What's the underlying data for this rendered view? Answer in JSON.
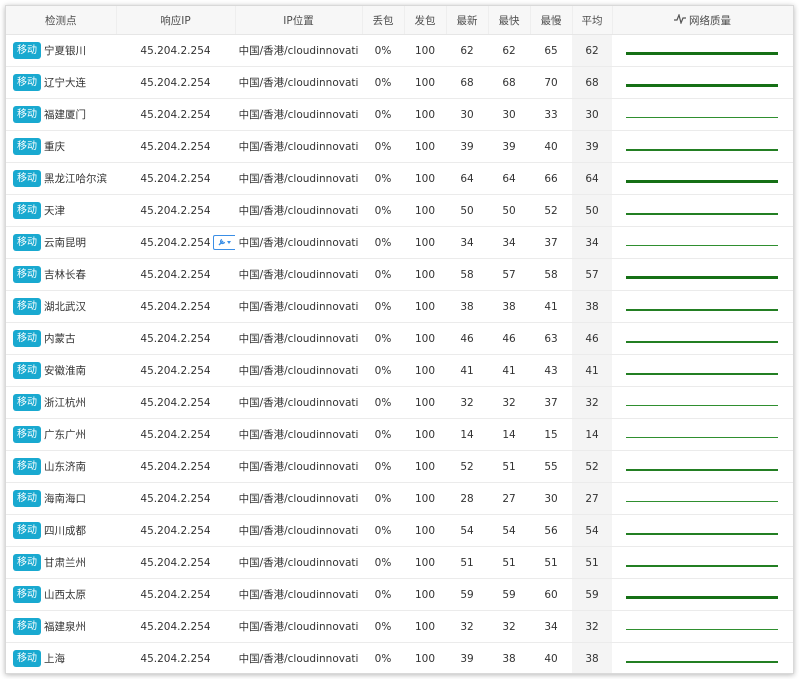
{
  "headers": [
    "检测点",
    "响应IP",
    "IP位置",
    "丢包",
    "发包",
    "最新",
    "最快",
    "最慢",
    "平均",
    "网络质量"
  ],
  "rows": [
    {
      "isp": "移动",
      "city": "宁夏银川",
      "ip": "45.204.2.254",
      "loc": "中国/香港/cloudinnovati",
      "loss": "0%",
      "sent": "100",
      "latest": "62",
      "fast": "62",
      "slow": "65",
      "avg": "62"
    },
    {
      "isp": "移动",
      "city": "辽宁大连",
      "ip": "45.204.2.254",
      "loc": "中国/香港/cloudinnovati",
      "loss": "0%",
      "sent": "100",
      "latest": "68",
      "fast": "68",
      "slow": "70",
      "avg": "68"
    },
    {
      "isp": "移动",
      "city": "福建厦门",
      "ip": "45.204.2.254",
      "loc": "中国/香港/cloudinnovati",
      "loss": "0%",
      "sent": "100",
      "latest": "30",
      "fast": "30",
      "slow": "33",
      "avg": "30"
    },
    {
      "isp": "移动",
      "city": "重庆",
      "ip": "45.204.2.254",
      "loc": "中国/香港/cloudinnovati",
      "loss": "0%",
      "sent": "100",
      "latest": "39",
      "fast": "39",
      "slow": "40",
      "avg": "39"
    },
    {
      "isp": "移动",
      "city": "黑龙江哈尔滨",
      "ip": "45.204.2.254",
      "loc": "中国/香港/cloudinnovati",
      "loss": "0%",
      "sent": "100",
      "latest": "64",
      "fast": "64",
      "slow": "66",
      "avg": "64"
    },
    {
      "isp": "移动",
      "city": "天津",
      "ip": "45.204.2.254",
      "loc": "中国/香港/cloudinnovati",
      "loss": "0%",
      "sent": "100",
      "latest": "50",
      "fast": "50",
      "slow": "52",
      "avg": "50"
    },
    {
      "isp": "移动",
      "city": "云南昆明",
      "ip": "45.204.2.254",
      "loc": "中国/香港/cloudinnovati",
      "loss": "0%",
      "sent": "100",
      "latest": "34",
      "fast": "34",
      "slow": "37",
      "avg": "34",
      "tool": true
    },
    {
      "isp": "移动",
      "city": "吉林长春",
      "ip": "45.204.2.254",
      "loc": "中国/香港/cloudinnovati",
      "loss": "0%",
      "sent": "100",
      "latest": "58",
      "fast": "57",
      "slow": "58",
      "avg": "57"
    },
    {
      "isp": "移动",
      "city": "湖北武汉",
      "ip": "45.204.2.254",
      "loc": "中国/香港/cloudinnovati",
      "loss": "0%",
      "sent": "100",
      "latest": "38",
      "fast": "38",
      "slow": "41",
      "avg": "38"
    },
    {
      "isp": "移动",
      "city": "内蒙古",
      "ip": "45.204.2.254",
      "loc": "中国/香港/cloudinnovati",
      "loss": "0%",
      "sent": "100",
      "latest": "46",
      "fast": "46",
      "slow": "63",
      "avg": "46"
    },
    {
      "isp": "移动",
      "city": "安徽淮南",
      "ip": "45.204.2.254",
      "loc": "中国/香港/cloudinnovati",
      "loss": "0%",
      "sent": "100",
      "latest": "41",
      "fast": "41",
      "slow": "43",
      "avg": "41"
    },
    {
      "isp": "移动",
      "city": "浙江杭州",
      "ip": "45.204.2.254",
      "loc": "中国/香港/cloudinnovati",
      "loss": "0%",
      "sent": "100",
      "latest": "32",
      "fast": "32",
      "slow": "37",
      "avg": "32"
    },
    {
      "isp": "移动",
      "city": "广东广州",
      "ip": "45.204.2.254",
      "loc": "中国/香港/cloudinnovati",
      "loss": "0%",
      "sent": "100",
      "latest": "14",
      "fast": "14",
      "slow": "15",
      "avg": "14"
    },
    {
      "isp": "移动",
      "city": "山东济南",
      "ip": "45.204.2.254",
      "loc": "中国/香港/cloudinnovati",
      "loss": "0%",
      "sent": "100",
      "latest": "52",
      "fast": "51",
      "slow": "55",
      "avg": "52"
    },
    {
      "isp": "移动",
      "city": "海南海口",
      "ip": "45.204.2.254",
      "loc": "中国/香港/cloudinnovati",
      "loss": "0%",
      "sent": "100",
      "latest": "28",
      "fast": "27",
      "slow": "30",
      "avg": "27"
    },
    {
      "isp": "移动",
      "city": "四川成都",
      "ip": "45.204.2.254",
      "loc": "中国/香港/cloudinnovati",
      "loss": "0%",
      "sent": "100",
      "latest": "54",
      "fast": "54",
      "slow": "56",
      "avg": "54"
    },
    {
      "isp": "移动",
      "city": "甘肃兰州",
      "ip": "45.204.2.254",
      "loc": "中国/香港/cloudinnovati",
      "loss": "0%",
      "sent": "100",
      "latest": "51",
      "fast": "51",
      "slow": "51",
      "avg": "51"
    },
    {
      "isp": "移动",
      "city": "山西太原",
      "ip": "45.204.2.254",
      "loc": "中国/香港/cloudinnovati",
      "loss": "0%",
      "sent": "100",
      "latest": "59",
      "fast": "59",
      "slow": "60",
      "avg": "59"
    },
    {
      "isp": "移动",
      "city": "福建泉州",
      "ip": "45.204.2.254",
      "loc": "中国/香港/cloudinnovati",
      "loss": "0%",
      "sent": "100",
      "latest": "32",
      "fast": "32",
      "slow": "34",
      "avg": "32"
    },
    {
      "isp": "移动",
      "city": "上海",
      "ip": "45.204.2.254",
      "loc": "中国/香港/cloudinnovati",
      "loss": "0%",
      "sent": "100",
      "latest": "39",
      "fast": "38",
      "slow": "40",
      "avg": "38"
    }
  ],
  "colors": {
    "badge": "#19a9d0",
    "quality_line": "#1b7a1b",
    "tool_border": "#3a8ee6"
  },
  "icons": {
    "quality_header": "pulse-icon",
    "tool": "wrench-icon"
  }
}
